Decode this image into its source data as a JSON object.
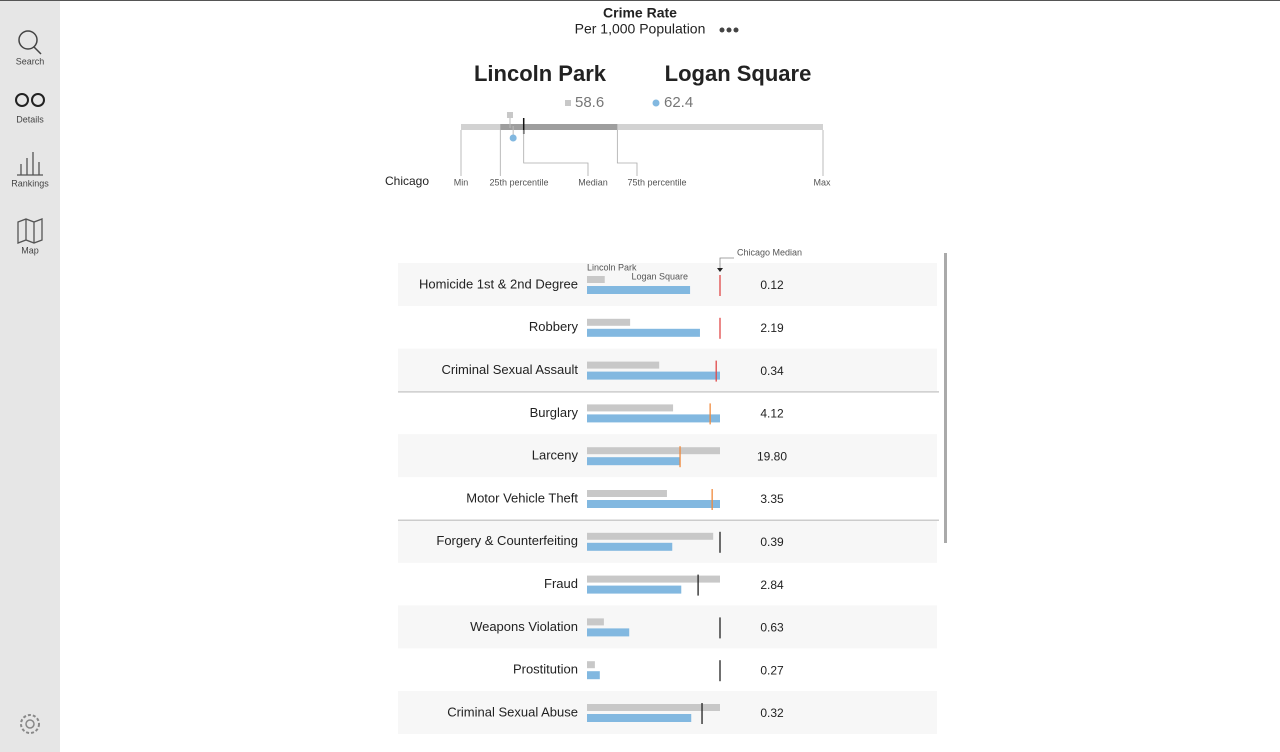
{
  "nav": {
    "items": [
      "Search",
      "Details",
      "Rankings",
      "Map"
    ]
  },
  "header": {
    "title": "Crime Rate",
    "subtitle": "Per 1,000 Population"
  },
  "comparison": {
    "places": [
      {
        "name": "Lincoln Park",
        "value": 58.6,
        "color": "#c8c8c8"
      },
      {
        "name": "Logan Square",
        "value": 62.4,
        "color": "#82b8e0"
      }
    ],
    "reference": "Chicago",
    "distribution": [
      {
        "label": "Min",
        "value": 0
      },
      {
        "label": "25th percentile",
        "value": 47
      },
      {
        "label": "Median",
        "value": 75
      },
      {
        "label": "75th percentile",
        "value": 187
      },
      {
        "label": "Max",
        "value": 433
      }
    ]
  },
  "table": {
    "median_label": "Chicago Median",
    "groups": [
      {
        "color": "#e04848",
        "rows": [
          {
            "label": "Homicide 1st & 2nd Degree",
            "lincoln_park": 0.016,
            "logan_square": 0.093,
            "median": "0.12"
          },
          {
            "label": "Robbery",
            "lincoln_park": 0.71,
            "logan_square": 1.86,
            "median": "2.19"
          },
          {
            "label": "Criminal Sexual Assault",
            "lincoln_park": 0.19,
            "logan_square": 0.35,
            "median": "0.34"
          }
        ]
      },
      {
        "color": "#f08a3c",
        "rows": [
          {
            "label": "Burglary",
            "lincoln_park": 2.88,
            "logan_square": 4.45,
            "median": "4.12"
          },
          {
            "label": "Larceny",
            "lincoln_park": 28.3,
            "logan_square": 19.7,
            "median": "19.80"
          },
          {
            "label": "Motor Vehicle Theft",
            "lincoln_park": 2.14,
            "logan_square": 3.56,
            "median": "3.35"
          }
        ]
      },
      {
        "color": "#222222",
        "rows": [
          {
            "label": "Forgery & Counterfeiting",
            "lincoln_park": 0.37,
            "logan_square": 0.25,
            "median": "0.39"
          },
          {
            "label": "Fraud",
            "lincoln_park": 3.4,
            "logan_square": 2.41,
            "median": "2.84"
          },
          {
            "label": "Weapons Violation",
            "lincoln_park": 0.08,
            "logan_square": 0.2,
            "median": "0.63"
          },
          {
            "label": "Prostitution",
            "lincoln_park": 0.016,
            "logan_square": 0.026,
            "median": "0.27"
          },
          {
            "label": "Criminal Sexual Abuse",
            "lincoln_park": 0.37,
            "logan_square": 0.29,
            "median": "0.32"
          }
        ]
      }
    ]
  }
}
